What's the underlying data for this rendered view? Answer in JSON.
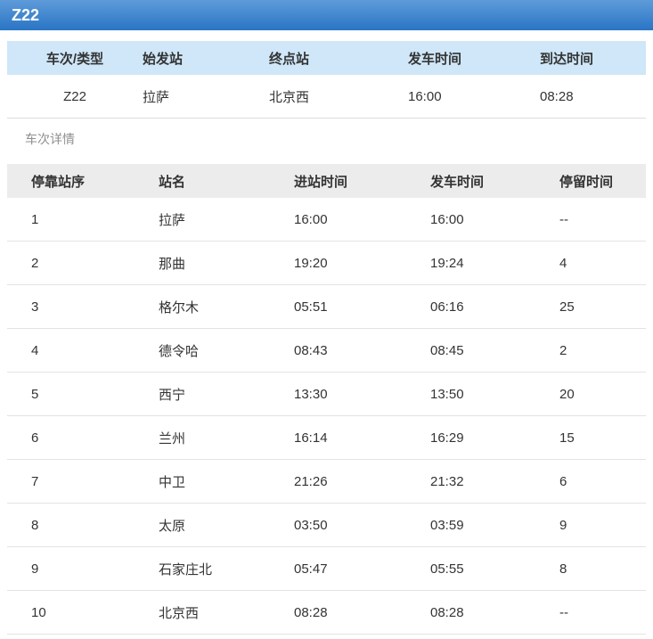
{
  "title_bar": {
    "train_no": "Z22"
  },
  "summary_table": {
    "headers": [
      "车次/类型",
      "始发站",
      "终点站",
      "发车时间",
      "到达时间"
    ],
    "row": {
      "train": "Z22",
      "origin": "拉萨",
      "terminal": "北京西",
      "depart_time": "16:00",
      "arrive_time": "08:28"
    }
  },
  "section": {
    "title": "车次详情"
  },
  "detail_table": {
    "headers": [
      "停靠站序",
      "站名",
      "进站时间",
      "发车时间",
      "停留时间"
    ],
    "rows": [
      [
        "1",
        "拉萨",
        "16:00",
        "16:00",
        "--"
      ],
      [
        "2",
        "那曲",
        "19:20",
        "19:24",
        "4"
      ],
      [
        "3",
        "格尔木",
        "05:51",
        "06:16",
        "25"
      ],
      [
        "4",
        "德令哈",
        "08:43",
        "08:45",
        "2"
      ],
      [
        "5",
        "西宁",
        "13:30",
        "13:50",
        "20"
      ],
      [
        "6",
        "兰州",
        "16:14",
        "16:29",
        "15"
      ],
      [
        "7",
        "中卫",
        "21:26",
        "21:32",
        "6"
      ],
      [
        "8",
        "太原",
        "03:50",
        "03:59",
        "9"
      ],
      [
        "9",
        "石家庄北",
        "05:47",
        "05:55",
        "8"
      ],
      [
        "10",
        "北京西",
        "08:28",
        "08:28",
        "--"
      ]
    ]
  },
  "colors": {
    "bar_gradient_top": "#5e9bd9",
    "bar_gradient_bottom": "#2a75c5",
    "summary_header_bg": "#cfe7f8",
    "detail_header_bg": "#ececec",
    "row_border": "#e3e3e3",
    "text": "#333333",
    "section_title": "#8f8f8f"
  }
}
